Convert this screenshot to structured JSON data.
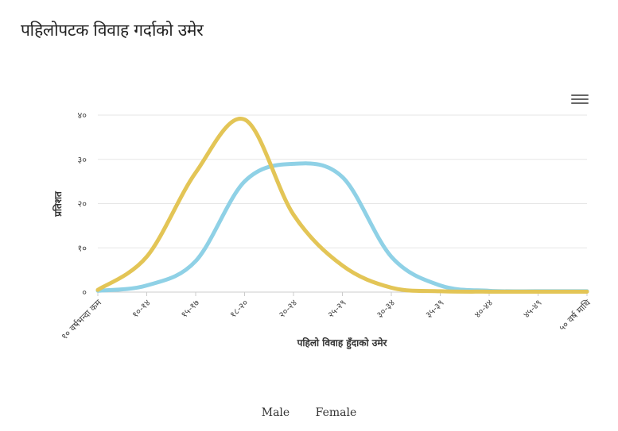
{
  "title": "पहिलोपटक विवाह गर्दाको उमेर",
  "chart_data": {
    "type": "line",
    "categories": [
      "१० वर्षभन्दा कम",
      "१०-१४",
      "१५-१७",
      "१८-२०",
      "२०-२४",
      "२५-२९",
      "३०-३४",
      "३५-३९",
      "४०-४४",
      "४५-४९",
      "५० वर्ष माथि"
    ],
    "xlabel": "पहिलो विवाह हुँदाको उमेर",
    "ylabel": "प्रतिशत",
    "ylim": [
      0,
      40
    ],
    "yticks": [
      0,
      10,
      20,
      30,
      40
    ],
    "ytick_labels": [
      "०",
      "१०",
      "२०",
      "३०",
      "४०"
    ],
    "grid": true,
    "legend_position": "bottom",
    "series": [
      {
        "name": "Male",
        "color": "#8fd1e6",
        "values": [
          0.3,
          1.5,
          7,
          25,
          29,
          26,
          8,
          1.5,
          0.3,
          0.2,
          0.2
        ]
      },
      {
        "name": "Female",
        "color": "#e3c556",
        "values": [
          0.5,
          8,
          27,
          39,
          17.5,
          6,
          1,
          0.2,
          0.1,
          0.1,
          0.1
        ]
      }
    ]
  }
}
